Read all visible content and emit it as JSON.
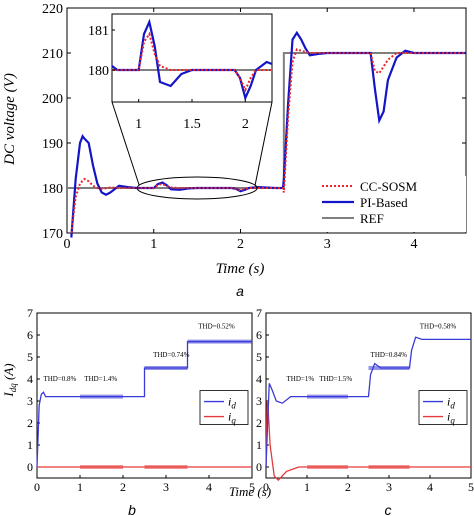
{
  "colors": {
    "cc_sosm": "#e8242a",
    "pi_based": "#1414c8",
    "ref": "#7f7f7f",
    "id": "#3a3ad8",
    "iq": "#e63a3a"
  },
  "chart_data": [
    {
      "id": "a",
      "type": "line",
      "panel_label": "a",
      "xlabel": "Time (s)",
      "ylabel": "DC voltage (V)",
      "xlim": [
        0,
        4.6
      ],
      "ylim": [
        170,
        220
      ],
      "xticks": [
        "0",
        "1",
        "2",
        "3",
        "4"
      ],
      "yticks": [
        "170",
        "180",
        "190",
        "200",
        "210",
        "220"
      ],
      "grid": false,
      "legend_position": "bottom-right",
      "series": [
        {
          "name": "CC-SOSM",
          "style": "dotted",
          "x": [
            0.05,
            0.1,
            0.15,
            0.2,
            0.25,
            0.3,
            0.35,
            0.4,
            0.5,
            0.6,
            0.7,
            0.8,
            0.9,
            1.0,
            1.05,
            1.1,
            1.15,
            1.2,
            1.3,
            1.5,
            1.8,
            1.9,
            1.95,
            2.0,
            2.05,
            2.1,
            2.2,
            2.4,
            2.49,
            2.5,
            2.55,
            2.6,
            2.65,
            2.7,
            2.75,
            2.8,
            2.9,
            3.0,
            3.2,
            3.4,
            3.5,
            3.55,
            3.6,
            3.65,
            3.7,
            3.8,
            4.0,
            4.6
          ],
          "y": [
            170,
            178,
            181,
            182,
            181.5,
            180.5,
            180,
            179.8,
            180.1,
            180,
            180,
            180,
            180,
            180,
            180.7,
            180.9,
            180.4,
            180.1,
            180,
            180,
            180,
            180,
            179.8,
            179.5,
            179.8,
            180,
            180,
            180,
            180,
            179,
            196,
            208,
            210.8,
            210.5,
            210.2,
            210,
            210,
            210,
            210,
            210,
            210,
            206,
            205.5,
            207,
            208.5,
            210,
            210,
            210
          ]
        },
        {
          "name": "PI-Based",
          "style": "solid",
          "x": [
            0.05,
            0.1,
            0.15,
            0.18,
            0.2,
            0.25,
            0.3,
            0.35,
            0.4,
            0.45,
            0.5,
            0.6,
            0.7,
            0.8,
            0.9,
            1.0,
            1.05,
            1.1,
            1.15,
            1.2,
            1.3,
            1.4,
            1.5,
            1.8,
            1.9,
            1.95,
            2.0,
            2.05,
            2.1,
            2.2,
            2.4,
            2.49,
            2.5,
            2.55,
            2.6,
            2.65,
            2.7,
            2.75,
            2.8,
            2.9,
            3.0,
            3.2,
            3.4,
            3.5,
            3.55,
            3.6,
            3.65,
            3.7,
            3.8,
            3.9,
            4.0,
            4.6
          ],
          "y": [
            169,
            182,
            190,
            191.5,
            191,
            190,
            185,
            181,
            179,
            178.5,
            179,
            180.5,
            180.2,
            180,
            180,
            180,
            180.9,
            181.2,
            180.6,
            179.7,
            179.6,
            179.9,
            180,
            180,
            180,
            179.8,
            179.3,
            179.6,
            180,
            180.2,
            180,
            180,
            182,
            199,
            213,
            214.5,
            213,
            211,
            209.5,
            209.8,
            210,
            210,
            210,
            210,
            202,
            195,
            197,
            204,
            209,
            210.5,
            210,
            210
          ]
        },
        {
          "name": "REF",
          "style": "solid",
          "x": [
            0,
            2.5,
            2.5,
            4.6
          ],
          "y": [
            180,
            180,
            210,
            210
          ]
        }
      ],
      "inset": {
        "xlim": [
          0.75,
          2.25
        ],
        "ylim": [
          179.2,
          181.4
        ],
        "xticks": [
          "1",
          "1.5",
          "2"
        ],
        "yticks": [
          "180",
          "181"
        ]
      }
    },
    {
      "id": "b",
      "type": "line",
      "panel_label": "b",
      "xlabel": "Time (s)",
      "ylabel": "I_dq (A)",
      "ylabel_main": "I",
      "ylabel_sub": "dq",
      "ylabel_unit": " (A)",
      "xlim": [
        0,
        5
      ],
      "ylim": [
        -0.5,
        7
      ],
      "xticks": [
        "0",
        "1",
        "2",
        "3",
        "4",
        "5"
      ],
      "yticks": [
        "0",
        "1",
        "2",
        "3",
        "4",
        "5",
        "6",
        "7"
      ],
      "legend": [
        "i_d",
        "i_q"
      ],
      "legend_main": "i",
      "legend_subs": [
        "d",
        "q"
      ],
      "annotations": [
        "THD=0.8%",
        "THD=1.4%",
        "THD=0.74%",
        "THD=0.52%"
      ],
      "series": [
        {
          "name": "i_d",
          "x": [
            0,
            0.05,
            0.1,
            0.15,
            0.2,
            0.3,
            1.0,
            1.0,
            2.0,
            2.0,
            2.5,
            2.5,
            3.5,
            3.5,
            5.0
          ],
          "y": [
            0,
            2.8,
            3.3,
            3.4,
            3.2,
            3.2,
            3.2,
            3.2,
            3.2,
            3.2,
            3.2,
            4.5,
            4.5,
            5.7,
            5.7
          ]
        },
        {
          "name": "i_q",
          "x": [
            0,
            5
          ],
          "y": [
            0,
            0
          ]
        }
      ]
    },
    {
      "id": "c",
      "type": "line",
      "panel_label": "c",
      "xlabel": "Time (s)",
      "ylabel": "",
      "xlim": [
        0,
        5
      ],
      "ylim": [
        -0.5,
        7
      ],
      "xticks": [
        "0",
        "1",
        "2",
        "3",
        "4",
        "5"
      ],
      "yticks": [
        "0",
        "1",
        "2",
        "3",
        "4",
        "5",
        "6",
        "7"
      ],
      "legend": [
        "i_d",
        "i_q"
      ],
      "legend_main": "i",
      "legend_subs": [
        "d",
        "q"
      ],
      "annotations": [
        "THD=1%",
        "THD=1.5%",
        "THD=0.84%",
        "THD=0.58%"
      ],
      "series": [
        {
          "name": "i_d",
          "x": [
            0,
            0.03,
            0.08,
            0.15,
            0.25,
            0.4,
            0.6,
            0.8,
            1.0,
            2.0,
            2.5,
            2.55,
            2.65,
            2.8,
            3.0,
            3.5,
            3.55,
            3.65,
            3.8,
            4.0,
            5.0
          ],
          "y": [
            0,
            1.5,
            3.8,
            3.5,
            3.0,
            2.9,
            3.2,
            3.2,
            3.2,
            3.2,
            3.2,
            4.2,
            4.7,
            4.5,
            4.5,
            4.5,
            5.3,
            5.9,
            5.8,
            5.8,
            5.8
          ]
        },
        {
          "name": "i_q",
          "x": [
            0,
            0.03,
            0.05,
            0.1,
            0.2,
            0.3,
            0.5,
            0.8,
            1.0,
            5.0
          ],
          "y": [
            0,
            3.0,
            2.7,
            1.0,
            -0.4,
            -0.6,
            -0.2,
            0,
            0,
            0
          ]
        }
      ]
    }
  ]
}
